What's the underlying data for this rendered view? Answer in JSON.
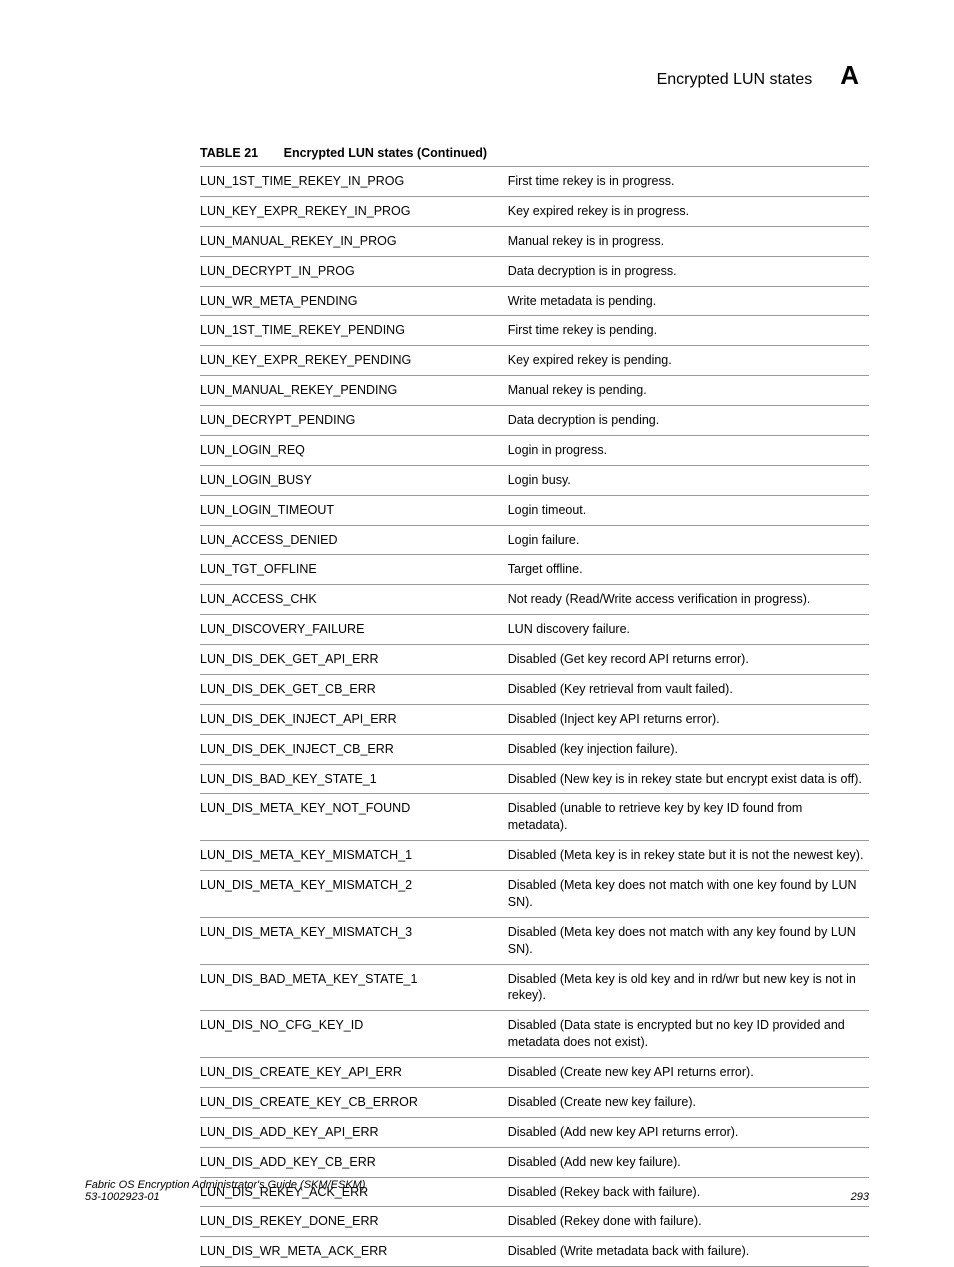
{
  "header": {
    "section_title": "Encrypted LUN states",
    "appendix_letter": "A"
  },
  "table": {
    "number": "TABLE 21",
    "title": "Encrypted LUN states (Continued)",
    "rows": [
      {
        "state": "LUN_1ST_TIME_REKEY_IN_PROG",
        "desc": "First time rekey is in progress."
      },
      {
        "state": "LUN_KEY_EXPR_REKEY_IN_PROG",
        "desc": "Key expired rekey is in progress."
      },
      {
        "state": "LUN_MANUAL_REKEY_IN_PROG",
        "desc": "Manual rekey is in progress."
      },
      {
        "state": "LUN_DECRYPT_IN_PROG",
        "desc": "Data decryption is in progress."
      },
      {
        "state": "LUN_WR_META_PENDING",
        "desc": "Write metadata is pending."
      },
      {
        "state": "LUN_1ST_TIME_REKEY_PENDING",
        "desc": "First time rekey is pending."
      },
      {
        "state": "LUN_KEY_EXPR_REKEY_PENDING",
        "desc": "Key expired rekey is pending."
      },
      {
        "state": "LUN_MANUAL_REKEY_PENDING",
        "desc": "Manual rekey is pending."
      },
      {
        "state": "LUN_DECRYPT_PENDING",
        "desc": "Data decryption is pending."
      },
      {
        "state": "LUN_LOGIN_REQ",
        "desc": "Login in progress."
      },
      {
        "state": "LUN_LOGIN_BUSY",
        "desc": "Login busy."
      },
      {
        "state": "LUN_LOGIN_TIMEOUT",
        "desc": "Login timeout."
      },
      {
        "state": "LUN_ACCESS_DENIED",
        "desc": "Login failure."
      },
      {
        "state": "LUN_TGT_OFFLINE",
        "desc": "Target offline."
      },
      {
        "state": "LUN_ACCESS_CHK",
        "desc": "Not ready (Read/Write access verification in progress)."
      },
      {
        "state": "LUN_DISCOVERY_FAILURE",
        "desc": "LUN discovery failure."
      },
      {
        "state": "LUN_DIS_DEK_GET_API_ERR",
        "desc": "Disabled (Get key record API returns error)."
      },
      {
        "state": "LUN_DIS_DEK_GET_CB_ERR",
        "desc": "Disabled (Key retrieval from vault failed)."
      },
      {
        "state": "LUN_DIS_DEK_INJECT_API_ERR",
        "desc": "Disabled (Inject key API returns error)."
      },
      {
        "state": "LUN_DIS_DEK_INJECT_CB_ERR",
        "desc": "Disabled (key injection failure)."
      },
      {
        "state": "LUN_DIS_BAD_KEY_STATE_1",
        "desc": "Disabled (New key is in rekey state but encrypt exist data is off)."
      },
      {
        "state": "LUN_DIS_META_KEY_NOT_FOUND",
        "desc": "Disabled (unable to retrieve key by key ID found from metadata)."
      },
      {
        "state": "LUN_DIS_META_KEY_MISMATCH_1",
        "desc": "Disabled (Meta key is in rekey state but it is not the newest key)."
      },
      {
        "state": "LUN_DIS_META_KEY_MISMATCH_2",
        "desc": "Disabled (Meta key does not match with one key found by LUN SN)."
      },
      {
        "state": "LUN_DIS_META_KEY_MISMATCH_3",
        "desc": "Disabled (Meta key does not match with any key found by LUN SN)."
      },
      {
        "state": "LUN_DIS_BAD_META_KEY_STATE_1",
        "desc": "Disabled (Meta key is old key and in rd/wr but new key is not in rekey)."
      },
      {
        "state": "LUN_DIS_NO_CFG_KEY_ID",
        "desc": "Disabled (Data state is encrypted but no key ID provided and metadata does not exist)."
      },
      {
        "state": "LUN_DIS_CREATE_KEY_API_ERR",
        "desc": "Disabled (Create new key API returns error)."
      },
      {
        "state": "LUN_DIS_CREATE_KEY_CB_ERROR",
        "desc": "Disabled (Create new key failure)."
      },
      {
        "state": "LUN_DIS_ADD_KEY_API_ERR",
        "desc": "Disabled (Add new key API returns error)."
      },
      {
        "state": "LUN_DIS_ADD_KEY_CB_ERR",
        "desc": "Disabled (Add new key failure)."
      },
      {
        "state": "LUN_DIS_REKEY_ACK_ERR",
        "desc": "Disabled (Rekey back with failure)."
      },
      {
        "state": "LUN_DIS_REKEY_DONE_ERR",
        "desc": "Disabled (Rekey done with failure)."
      },
      {
        "state": "LUN_DIS_WR_META_ACK_ERR",
        "desc": "Disabled (Write metadata back with failure)."
      }
    ]
  },
  "footer": {
    "doc_title": "Fabric OS Encryption Administrator's Guide (SKM/ESKM)",
    "doc_number": "53-1002923-01",
    "page_number": "293"
  }
}
